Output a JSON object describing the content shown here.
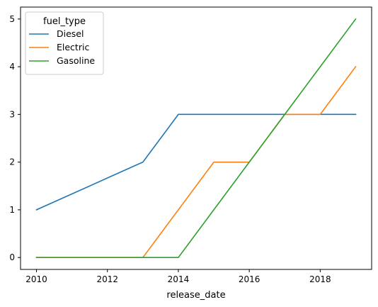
{
  "chart_data": {
    "type": "line",
    "x": [
      2010,
      2011,
      2012,
      2013,
      2014,
      2015,
      2016,
      2017,
      2018,
      2019
    ],
    "series": [
      {
        "name": "Diesel",
        "color": "#1f77b4",
        "values": [
          1,
          1.333,
          1.667,
          2,
          3,
          3,
          3,
          3,
          3,
          3
        ]
      },
      {
        "name": "Electric",
        "color": "#ff7f0e",
        "values": [
          0,
          0,
          0,
          0,
          1,
          2,
          2,
          3,
          3,
          4
        ]
      },
      {
        "name": "Gasoline",
        "color": "#2ca02c",
        "values": [
          0,
          0,
          0,
          0,
          0,
          1,
          2,
          3,
          4,
          5
        ]
      }
    ],
    "xlabel": "release_date",
    "ylabel": "",
    "xlim": [
      2009.55,
      2019.45
    ],
    "ylim": [
      -0.25,
      5.25
    ],
    "xticks": [
      2010,
      2012,
      2014,
      2016,
      2018
    ],
    "yticks": [
      0,
      1,
      2,
      3,
      4,
      5
    ],
    "legend": {
      "title": "fuel_type",
      "placement": "top-left"
    },
    "grid": false
  }
}
